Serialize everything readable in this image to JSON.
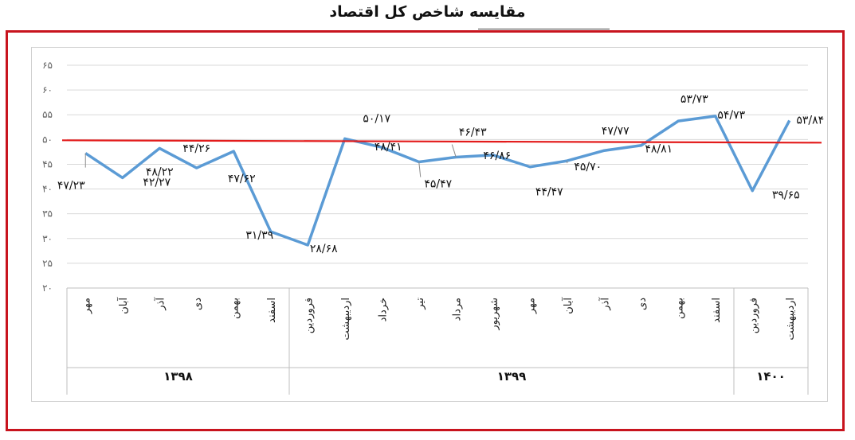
{
  "title": "مقایسه شاخص کل اقتصاد",
  "colors": {
    "series": "#5b9bd5",
    "threshold": "#e31b1b",
    "frame": "#c8141e",
    "grid": "#d9d9d9"
  },
  "chart_data": {
    "type": "line",
    "title": "مقایسه شاخص کل اقتصاد",
    "ylim": [
      20,
      65
    ],
    "yticks": [
      "۲۰",
      "۲۵",
      "۳۰",
      "۳۵",
      "۴۰",
      "۴۵",
      "۵۰",
      "۵۵",
      "۶۰",
      "۶۵"
    ],
    "categories": [
      "مهر",
      "آبان",
      "آذر",
      "دی",
      "بهمن",
      "اسفند",
      "فروردین",
      "اردیبهشت",
      "خرداد",
      "تیر",
      "مرداد",
      "شهریور",
      "مهر",
      "آبان",
      "آذر",
      "دی",
      "بهمن",
      "اسفند",
      "فروردین",
      "اردیبهشت"
    ],
    "years": [
      {
        "label": "۱۳۹۸",
        "count": 6
      },
      {
        "label": "۱۳۹۹",
        "count": 12
      },
      {
        "label": "۱۴۰۰",
        "count": 2
      }
    ],
    "series": [
      {
        "values": [
          47.23,
          42.27,
          48.22,
          44.26,
          47.62,
          31.39,
          28.68,
          50.17,
          48.41,
          45.47,
          46.43,
          46.86,
          44.47,
          45.7,
          47.77,
          48.81,
          53.73,
          54.73,
          39.65,
          53.84
        ]
      }
    ],
    "value_labels": [
      "۴۷/۲۳",
      "۴۲/۲۷",
      "۴۸/۲۲",
      "۴۴/۲۶",
      "۴۷/۶۲",
      "۳۱/۳۹",
      "۲۸/۶۸",
      "۵۰/۱۷",
      "۴۸/۴۱",
      "۴۵/۴۷",
      "۴۶/۴۳",
      "۴۶/۸۶",
      "۴۴/۴۷",
      "۴۵/۷۰",
      "۴۷/۷۷",
      "۴۸/۸۱",
      "۵۳/۷۳",
      "۵۴/۷۳",
      "۳۹/۶۵",
      "۵۳/۸۴"
    ],
    "threshold": 50,
    "grid": true
  }
}
